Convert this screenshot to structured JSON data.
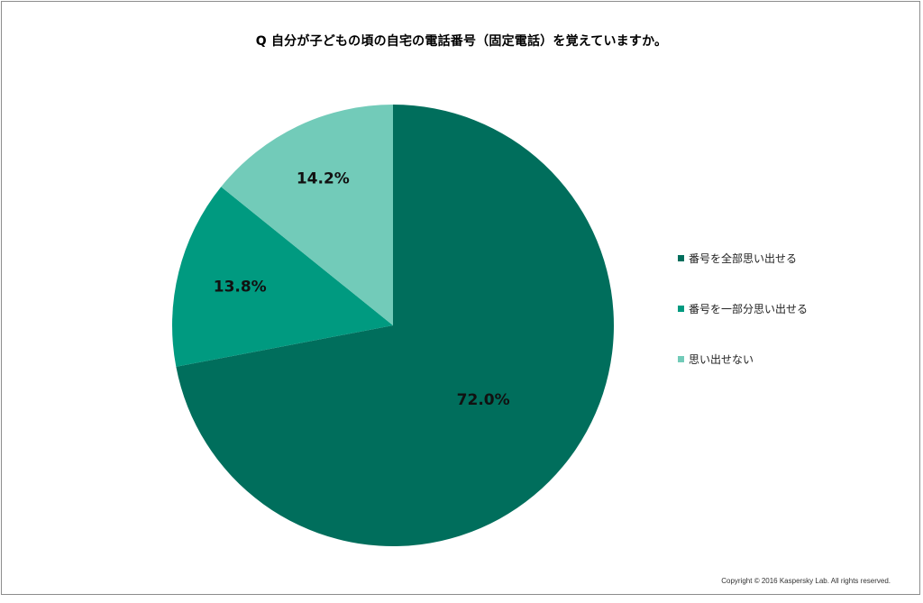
{
  "chart_data": {
    "type": "pie",
    "title": "Q 自分が子どもの頃の自宅の電話番号（固定電話）を覚えていますか。",
    "categories": [
      "番号を全部思い出せる",
      "番号を一部分思い出せる",
      "思い出せない"
    ],
    "values": [
      72.0,
      13.8,
      14.2
    ],
    "labels": [
      "72.0%",
      "13.8%",
      "14.2%"
    ],
    "colors": [
      "#006e5c",
      "#009a80",
      "#72cbb9"
    ],
    "start_angle": "12 o'clock",
    "direction": "clockwise",
    "legend_position": "right"
  },
  "footer": {
    "copyright": "Copyright © 2016 Kaspersky Lab. All rights reserved."
  }
}
